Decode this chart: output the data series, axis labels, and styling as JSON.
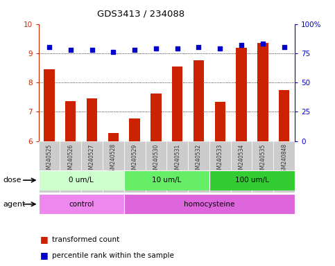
{
  "title": "GDS3413 / 234088",
  "samples": [
    "GSM240525",
    "GSM240526",
    "GSM240527",
    "GSM240528",
    "GSM240529",
    "GSM240530",
    "GSM240531",
    "GSM240532",
    "GSM240533",
    "GSM240534",
    "GSM240535",
    "GSM240848"
  ],
  "transformed_count": [
    8.45,
    7.35,
    7.45,
    6.28,
    6.78,
    7.62,
    8.55,
    8.75,
    7.33,
    9.18,
    9.35,
    7.75
  ],
  "percentile_rank": [
    80,
    78,
    78,
    76,
    78,
    79,
    79,
    80,
    79,
    82,
    83,
    80
  ],
  "ylim_left": [
    6,
    10
  ],
  "ylim_right": [
    0,
    100
  ],
  "yticks_left": [
    6,
    7,
    8,
    9,
    10
  ],
  "yticks_right": [
    0,
    25,
    50,
    75,
    100
  ],
  "bar_color": "#cc2200",
  "dot_color": "#0000cc",
  "dose_groups": [
    {
      "label": "0 um/L",
      "start": 0,
      "end": 3,
      "color": "#ccffcc"
    },
    {
      "label": "10 um/L",
      "start": 4,
      "end": 7,
      "color": "#66ee66"
    },
    {
      "label": "100 um/L",
      "start": 8,
      "end": 11,
      "color": "#33cc33"
    }
  ],
  "agent_groups": [
    {
      "label": "control",
      "start": 0,
      "end": 3,
      "color": "#ee88ee"
    },
    {
      "label": "homocysteine",
      "start": 4,
      "end": 11,
      "color": "#dd66dd"
    }
  ],
  "dose_label": "dose",
  "agent_label": "agent",
  "legend_bar_label": "transformed count",
  "legend_dot_label": "percentile rank within the sample",
  "bar_bottom": 6.0,
  "xlabel_bg": "#cccccc"
}
